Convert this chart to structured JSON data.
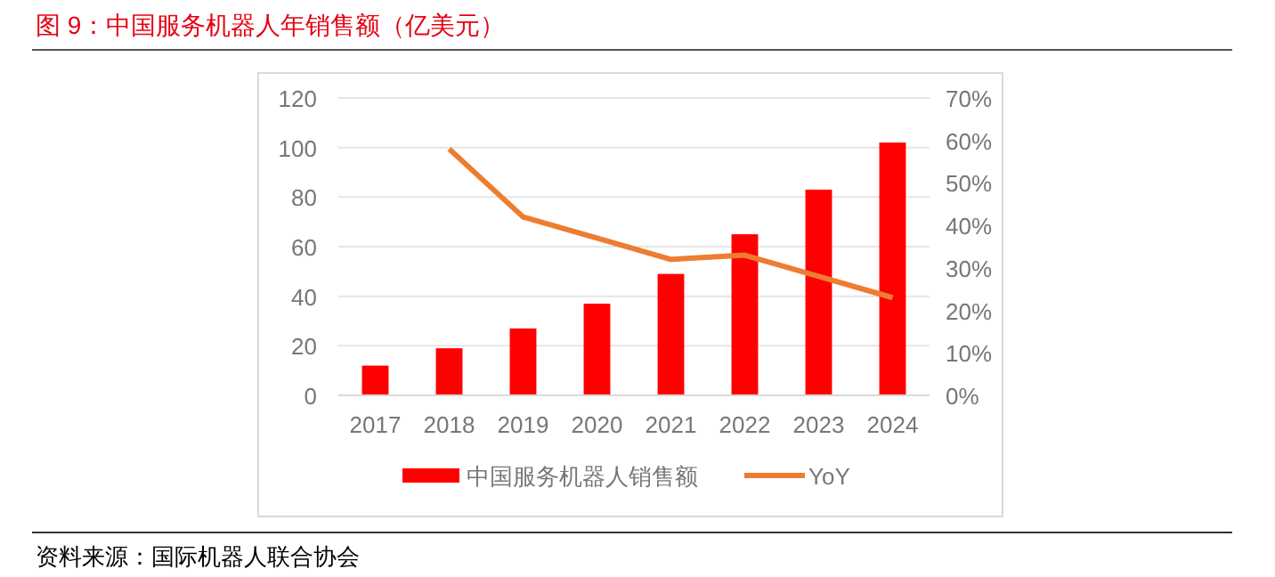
{
  "chart_data": {
    "type": "bar",
    "title": "图 9：中国服务机器人年销售额（亿美元）",
    "annotations": [
      "资料来源：国际机器人联合协会"
    ],
    "categories": [
      "2017",
      "2018",
      "2019",
      "2020",
      "2021",
      "2022",
      "2023",
      "2024"
    ],
    "series": [
      {
        "name": "中国服务机器人销售额",
        "color": "#ff0000",
        "values": [
          12,
          19,
          27,
          37,
          49,
          65,
          83,
          102
        ]
      },
      {
        "name": "YoY",
        "type": "line",
        "axis": "y2",
        "color": "#ed7d31",
        "values": [
          null,
          58,
          42,
          37,
          32,
          33,
          28,
          23
        ]
      }
    ],
    "ylim": [
      0,
      120
    ],
    "yticks": [
      0,
      20,
      40,
      60,
      80,
      100,
      120
    ],
    "y2lim": [
      0,
      70
    ],
    "y2ticks": [
      {
        "value": 0,
        "label": "0%"
      },
      {
        "value": 10,
        "label": "10%"
      },
      {
        "value": 20,
        "label": "20%"
      },
      {
        "value": 30,
        "label": "30%"
      },
      {
        "value": 40,
        "label": "40%"
      },
      {
        "value": 50,
        "label": "50%"
      },
      {
        "value": 60,
        "label": "60%"
      },
      {
        "value": 70,
        "label": "70%"
      }
    ],
    "grid": "y",
    "legend": "bottom",
    "marker": "none",
    "line_style": "solid"
  }
}
